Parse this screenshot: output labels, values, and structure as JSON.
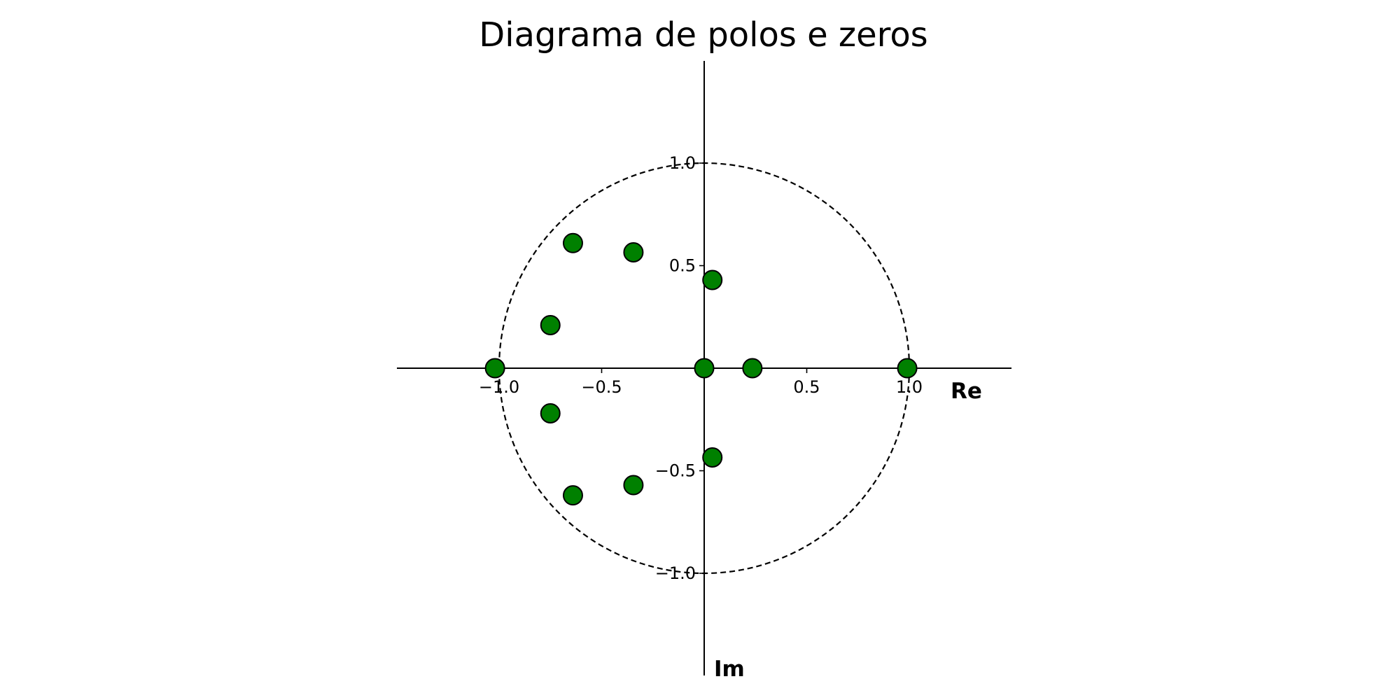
{
  "chart_data": {
    "type": "scatter",
    "title": "Diagrama de polos e zeros",
    "xlabel": "Re",
    "ylabel": "Im",
    "xlim": [
      -1.5,
      1.5
    ],
    "ylim": [
      -1.5,
      1.5
    ],
    "grid": false,
    "unit_circle": true,
    "marker_color": "#008000",
    "x_ticks": [
      {
        "value": -1.0,
        "label": "−1.0"
      },
      {
        "value": -0.5,
        "label": "−0.5"
      },
      {
        "value": 0.5,
        "label": "0.5"
      },
      {
        "value": 1.0,
        "label": "1.0"
      }
    ],
    "y_ticks": [
      {
        "value": 1.0,
        "label": "1.0"
      },
      {
        "value": 0.5,
        "label": "0.5"
      },
      {
        "value": -0.5,
        "label": "−0.5"
      },
      {
        "value": -1.0,
        "label": "−1.0"
      }
    ],
    "points": [
      {
        "x": -1.02,
        "y": 0.0
      },
      {
        "x": -0.75,
        "y": 0.21
      },
      {
        "x": -0.75,
        "y": -0.22
      },
      {
        "x": -0.64,
        "y": 0.61
      },
      {
        "x": -0.64,
        "y": -0.62
      },
      {
        "x": -0.345,
        "y": 0.565
      },
      {
        "x": -0.345,
        "y": -0.57
      },
      {
        "x": 0.0,
        "y": 0.0
      },
      {
        "x": 0.04,
        "y": 0.43
      },
      {
        "x": 0.04,
        "y": -0.435
      },
      {
        "x": 0.235,
        "y": 0.0
      },
      {
        "x": 0.99,
        "y": 0.0
      }
    ]
  }
}
